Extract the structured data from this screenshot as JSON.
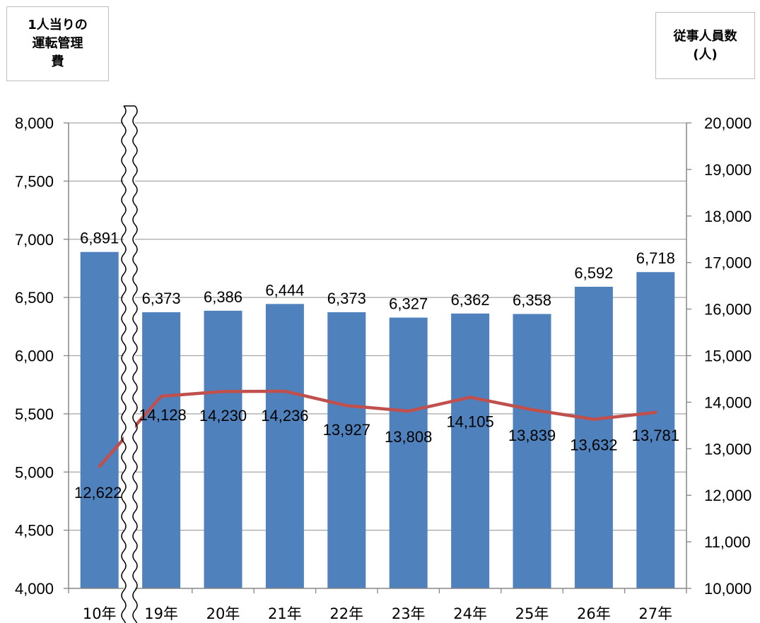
{
  "left_axis_title": "1人当りの\n運転管理\n費",
  "right_axis_title": "従事人員数\n(人)",
  "colors": {
    "bar": "#4f81bd",
    "line": "#c0504d",
    "grid": "#a6a6a6",
    "axis": "#868686"
  },
  "chart_data": {
    "type": "bar",
    "categories": [
      "10年",
      "19年",
      "20年",
      "21年",
      "22年",
      "23年",
      "24年",
      "25年",
      "26年",
      "27年"
    ],
    "series": [
      {
        "type": "bar",
        "axis": "left",
        "values": [
          6891,
          6373,
          6386,
          6444,
          6373,
          6327,
          6362,
          6358,
          6592,
          6718
        ],
        "labels": [
          "6,891",
          "6,373",
          "6,386",
          "6,444",
          "6,373",
          "6,327",
          "6,362",
          "6,358",
          "6,592",
          "6,718"
        ]
      },
      {
        "type": "line",
        "axis": "right",
        "values": [
          12622,
          14128,
          14230,
          14236,
          13927,
          13808,
          14105,
          13839,
          13632,
          13781
        ],
        "labels": [
          "12,622",
          "14,128",
          "14,230",
          "14,236",
          "13,927",
          "13,808",
          "14,105",
          "13,839",
          "13,632",
          "13,781"
        ]
      }
    ],
    "left_axis": {
      "ylim": [
        4000,
        8000
      ],
      "ticks": [
        4000,
        4500,
        5000,
        5500,
        6000,
        6500,
        7000,
        7500,
        8000
      ],
      "tick_labels": [
        "4,000",
        "4,500",
        "5,000",
        "5,500",
        "6,000",
        "6,500",
        "7,000",
        "7,500",
        "8,000"
      ]
    },
    "right_axis": {
      "ylim": [
        10000,
        20000
      ],
      "ticks": [
        10000,
        11000,
        12000,
        13000,
        14000,
        15000,
        16000,
        17000,
        18000,
        19000,
        20000
      ],
      "tick_labels": [
        "10,000",
        "11,000",
        "12,000",
        "13,000",
        "14,000",
        "15,000",
        "16,000",
        "17,000",
        "18,000",
        "19,000",
        "20,000"
      ]
    },
    "grid": true,
    "axis_break": "between 10年 and 19年"
  }
}
